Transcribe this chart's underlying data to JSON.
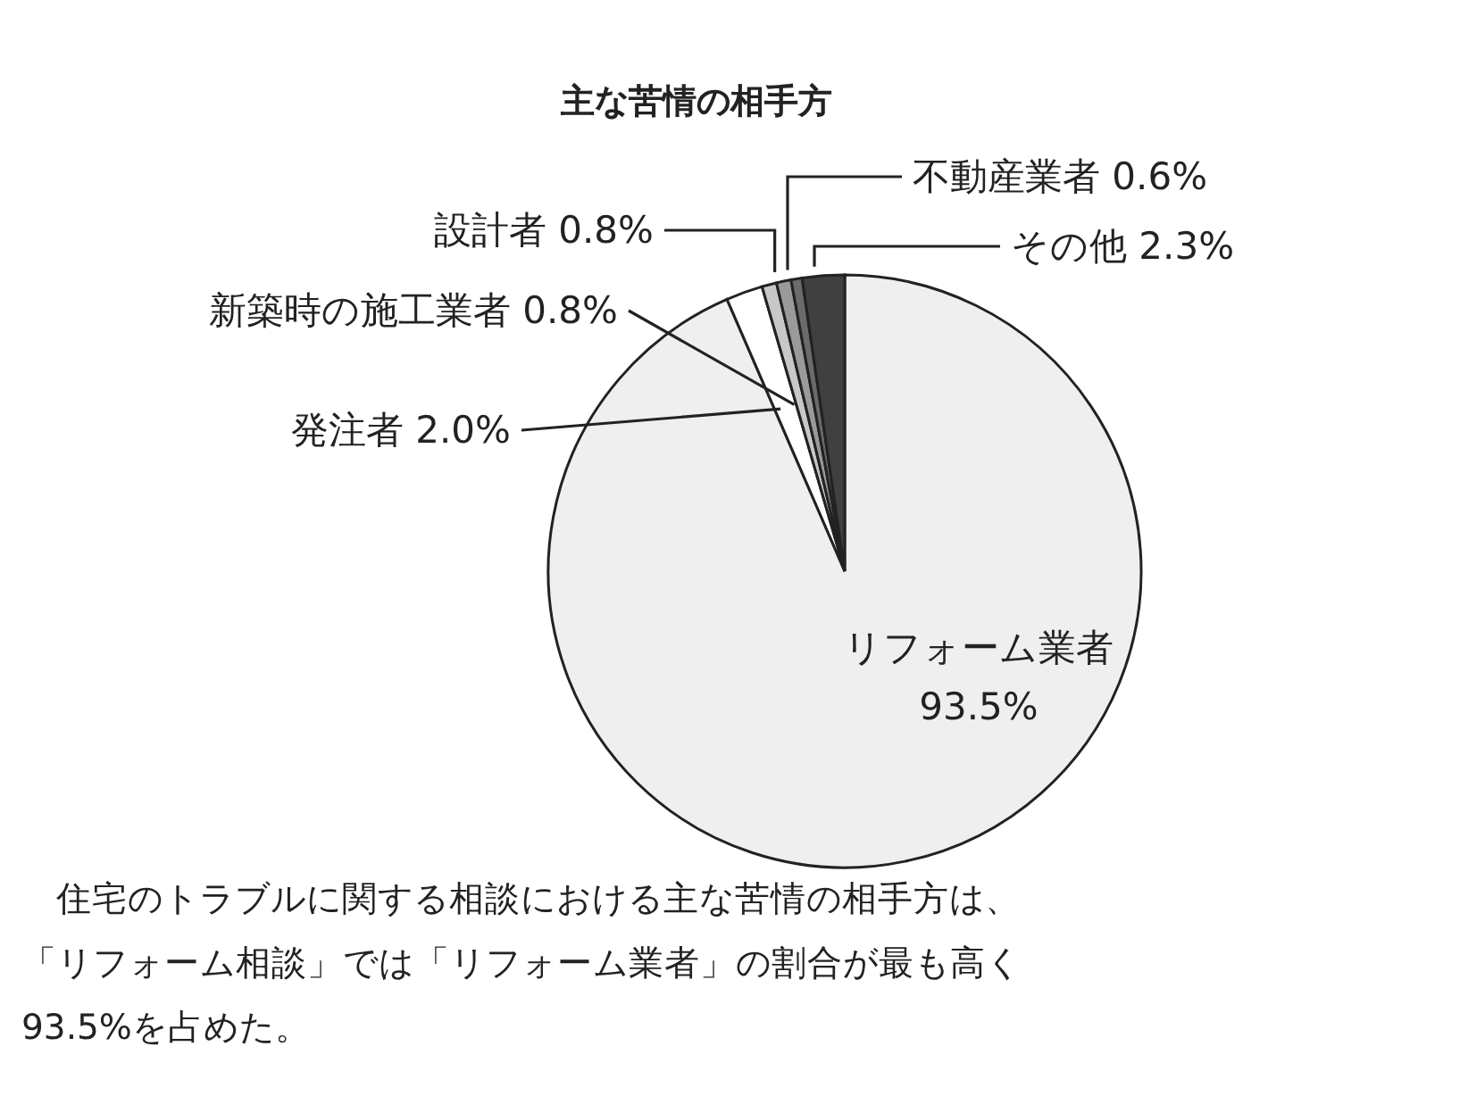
{
  "chart_data": {
    "type": "pie",
    "title": "主な苦情の相手方",
    "categories": [
      "リフォーム業者",
      "発注者",
      "新築時の施工業者",
      "設計者",
      "不動産業者",
      "その他"
    ],
    "values": [
      93.5,
      2.0,
      0.8,
      0.8,
      0.6,
      2.3
    ],
    "value_labels": [
      "93.5%",
      "2.0%",
      "0.8%",
      "0.8%",
      "0.6%",
      "2.3%"
    ],
    "colors": [
      "#efefef",
      "#ffffff",
      "#c8c8c8",
      "#9a9a9a",
      "#6b6b6b",
      "#404040"
    ],
    "annotations": [
      "住宅のトラブルに関する相談における主な苦情の相手方は、「リフォーム相談」では「リフォーム業者」の割合が最も高く93.5%を占めた。"
    ]
  }
}
